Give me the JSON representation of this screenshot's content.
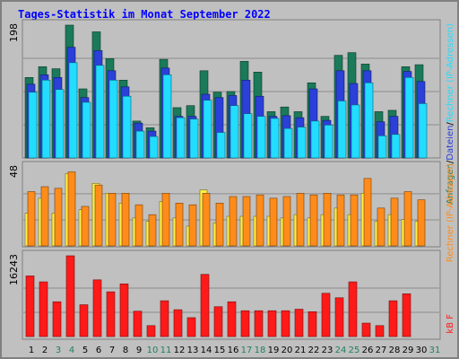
{
  "title": "Tages-Statistik im Monat September 2022",
  "chart_data": [
    {
      "type": "bar",
      "title": "Tages-Statistik im Monat September 2022",
      "categories": [
        "1",
        "2",
        "3",
        "4",
        "5",
        "6",
        "7",
        "8",
        "9",
        "10",
        "11",
        "12",
        "13",
        "14",
        "15",
        "16",
        "17",
        "18",
        "19",
        "20",
        "21",
        "22",
        "23",
        "24",
        "25",
        "26",
        "27",
        "28",
        "29",
        "30",
        "31"
      ],
      "weekend_days": [
        "3",
        "4",
        "10",
        "11",
        "17",
        "18",
        "24",
        "25",
        "31"
      ],
      "y_max_label": "198",
      "ylim": [
        0,
        198
      ],
      "right_label_parts": [
        "Anfragen",
        "/",
        "Dateien",
        "/",
        "Rechner (IP-Adressen)"
      ],
      "series": [
        {
          "name": "Anfragen",
          "color": "#1a7a5a",
          "values": [
            120,
            136,
            133,
            198,
            103,
            188,
            148,
            116,
            55,
            45,
            147,
            75,
            78,
            130,
            98,
            99,
            144,
            128,
            69,
            76,
            69,
            112,
            62,
            153,
            157,
            140,
            69,
            71,
            136,
            139,
            0
          ]
        },
        {
          "name": "Dateien",
          "color": "#2a40d8",
          "values": [
            110,
            124,
            120,
            165,
            90,
            160,
            130,
            106,
            52,
            40,
            134,
            62,
            62,
            95,
            90,
            93,
            116,
            92,
            62,
            63,
            60,
            103,
            56,
            130,
            111,
            130,
            54,
            62,
            129,
            114,
            0
          ]
        },
        {
          "name": "Rechner (IP-Adressen)",
          "color": "#22ddff",
          "values": [
            98,
            116,
            102,
            142,
            83,
            138,
            116,
            92,
            40,
            32,
            124,
            60,
            58,
            86,
            38,
            78,
            66,
            62,
            59,
            44,
            46,
            55,
            49,
            85,
            79,
            112,
            33,
            35,
            120,
            81,
            0
          ]
        }
      ]
    },
    {
      "type": "bar",
      "y_max_label": "48",
      "ylim": [
        0,
        48
      ],
      "right_label": "Rechner (IP-Adressen)",
      "series": [
        {
          "name": "Besuche",
          "color": "#ffee44",
          "values": [
            20,
            29,
            20,
            44,
            22,
            38,
            32,
            26,
            17,
            15,
            27,
            17,
            12,
            34,
            14,
            18,
            18,
            18,
            18,
            17,
            19,
            17,
            19,
            23,
            19,
            32,
            15,
            19,
            16,
            15,
            0
          ]
        },
        {
          "name": "Rechner (IP-Adressen)",
          "color": "#ff8c1a",
          "values": [
            33,
            36,
            35,
            45,
            24,
            37,
            32,
            32,
            25,
            19,
            32,
            26,
            25,
            32,
            26,
            30,
            30,
            31,
            29,
            30,
            32,
            31,
            32,
            31,
            31,
            41,
            23,
            29,
            33,
            28,
            0
          ]
        }
      ]
    },
    {
      "type": "bar",
      "y_max_label": "16243",
      "ylim": [
        0,
        16243
      ],
      "right_label": "kB F",
      "series": [
        {
          "name": "kB F",
          "color": "#ff1a1a",
          "values": [
            12200,
            11000,
            7000,
            16243,
            6400,
            11400,
            9000,
            10600,
            5100,
            2200,
            7200,
            5400,
            3800,
            12500,
            6000,
            7000,
            5200,
            5200,
            5200,
            5200,
            5500,
            5000,
            8700,
            7800,
            11000,
            2700,
            2200,
            7200,
            8600,
            0,
            0
          ]
        }
      ]
    }
  ]
}
